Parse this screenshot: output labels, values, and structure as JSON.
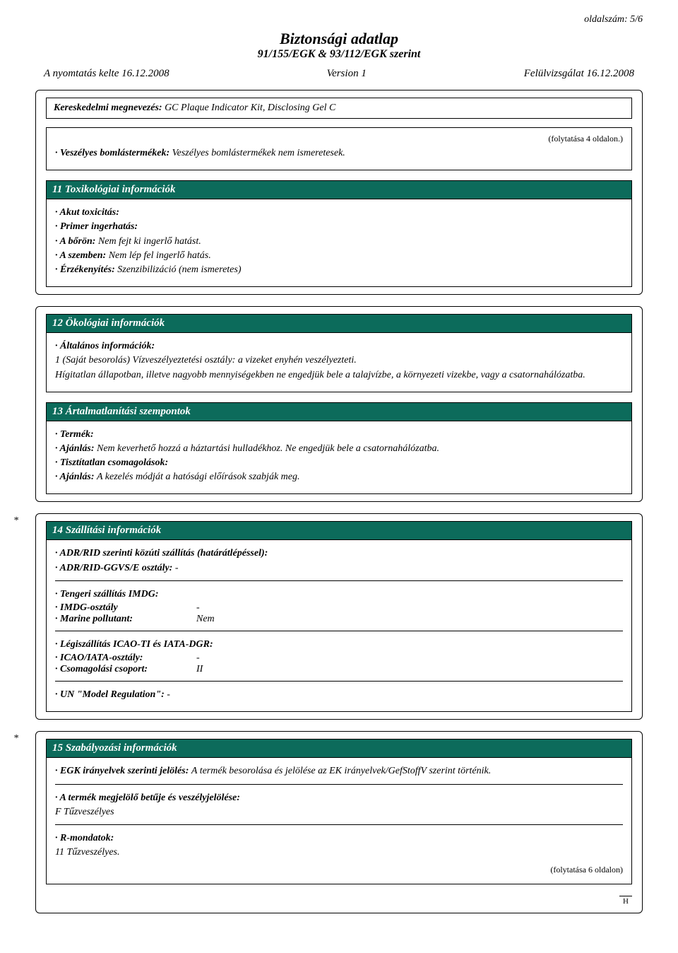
{
  "page": {
    "page_number": "oldalszám: 5/6",
    "title": "Biztonsági adatlap",
    "subtitle": "91/155/EGK & 93/112/EGK szerint",
    "print_date": "A nyomtatás kelte 16.12.2008",
    "version": "Version 1",
    "revision": "Felülvizsgálat 16.12.2008"
  },
  "trade_name": {
    "label": "Kereskedelmi megnevezés:",
    "value": "GC Plaque Indicator Kit, Disclosing Gel C"
  },
  "continuation_top": "(folytatása 4 oldalon.)",
  "section_decomp": {
    "line1_label": "· Veszélyes bomlástermékek:",
    "line1_value": "Veszélyes bomlástermékek nem ismeretesek."
  },
  "section11": {
    "title": "11 Toxikológiai információk",
    "l1": "· Akut toxicitás:",
    "l2": "· Primer ingerhatás:",
    "l3_label": "· A bőrön:",
    "l3_value": "Nem fejt ki ingerlő hatást.",
    "l4_label": "· A szemben:",
    "l4_value": "Nem lép fel ingerlő hatás.",
    "l5_label": "· Érzékenyítés:",
    "l5_value": "Szenzibilizáció (nem ismeretes)"
  },
  "section12": {
    "title": "12 Ökológiai információk",
    "l1": "· Általános információk:",
    "l2": "1 (Saját besorolás) Vízveszélyeztetési osztály: a vizeket enyhén veszélyezteti.",
    "l3": "Hígitatlan állapotban, illetve nagyobb mennyiségekben ne engedjük bele a talajvízbe, a környezeti vizekbe, vagy a csatornahálózatba."
  },
  "section13": {
    "title": "13 Ártalmatlanítási szempontok",
    "l1": "· Termék:",
    "l2_label": "· Ajánlás:",
    "l2_value": "Nem keverhető hozzá a háztartási hulladékhoz. Ne engedjük bele a csatornahálózatba.",
    "l3": "· Tisztítatlan csomagolások:",
    "l4_label": "· Ajánlás:",
    "l4_value": "A kezelés módját a hatósági előírások szabják meg."
  },
  "section14": {
    "title": "14 Szállítási információk",
    "asterisk": "*",
    "block1_l1": "· ADR/RID szerinti közúti szállítás (határátlépéssel):",
    "block1_l2_label": "· ADR/RID-GGVS/E osztály:",
    "block1_l2_value": "-",
    "block2_l1": "· Tengeri szállítás IMDG:",
    "block2_l2_label": "· IMDG-osztály",
    "block2_l2_value": "-",
    "block2_l3_label": "· Marine pollutant:",
    "block2_l3_value": "Nem",
    "block3_l1": "· Légiszállítás ICAO-TI és IATA-DGR:",
    "block3_l2_label": "· ICAO/IATA-osztály:",
    "block3_l2_value": "-",
    "block3_l3_label": "· Csomagolási csoport:",
    "block3_l3_value": "II",
    "block4_l1_label": "· UN \"Model Regulation\":",
    "block4_l1_value": "-"
  },
  "section15": {
    "title": "15 Szabályozási információk",
    "asterisk": "*",
    "block1_l1_label": "· EGK irányelvek szerinti jelölés:",
    "block1_l1_value": "A termék besorolása és jelölése az EK irányelvek/GefStoffV szerint történik.",
    "block2_l1": "· A termék megjelölő betűje és veszélyjelölése:",
    "block2_l2": "F Tűzveszélyes",
    "block3_l1": "· R-mondatok:",
    "block3_l2": "11 Tűzveszélyes.",
    "foot_cont": "(folytatása 6 oldalon)",
    "foot_code": "H"
  },
  "colors": {
    "section_bg": "#0C6B5B",
    "section_fg": "#ffffff",
    "page_bg": "#ffffff",
    "text": "#000000",
    "border": "#000000"
  }
}
